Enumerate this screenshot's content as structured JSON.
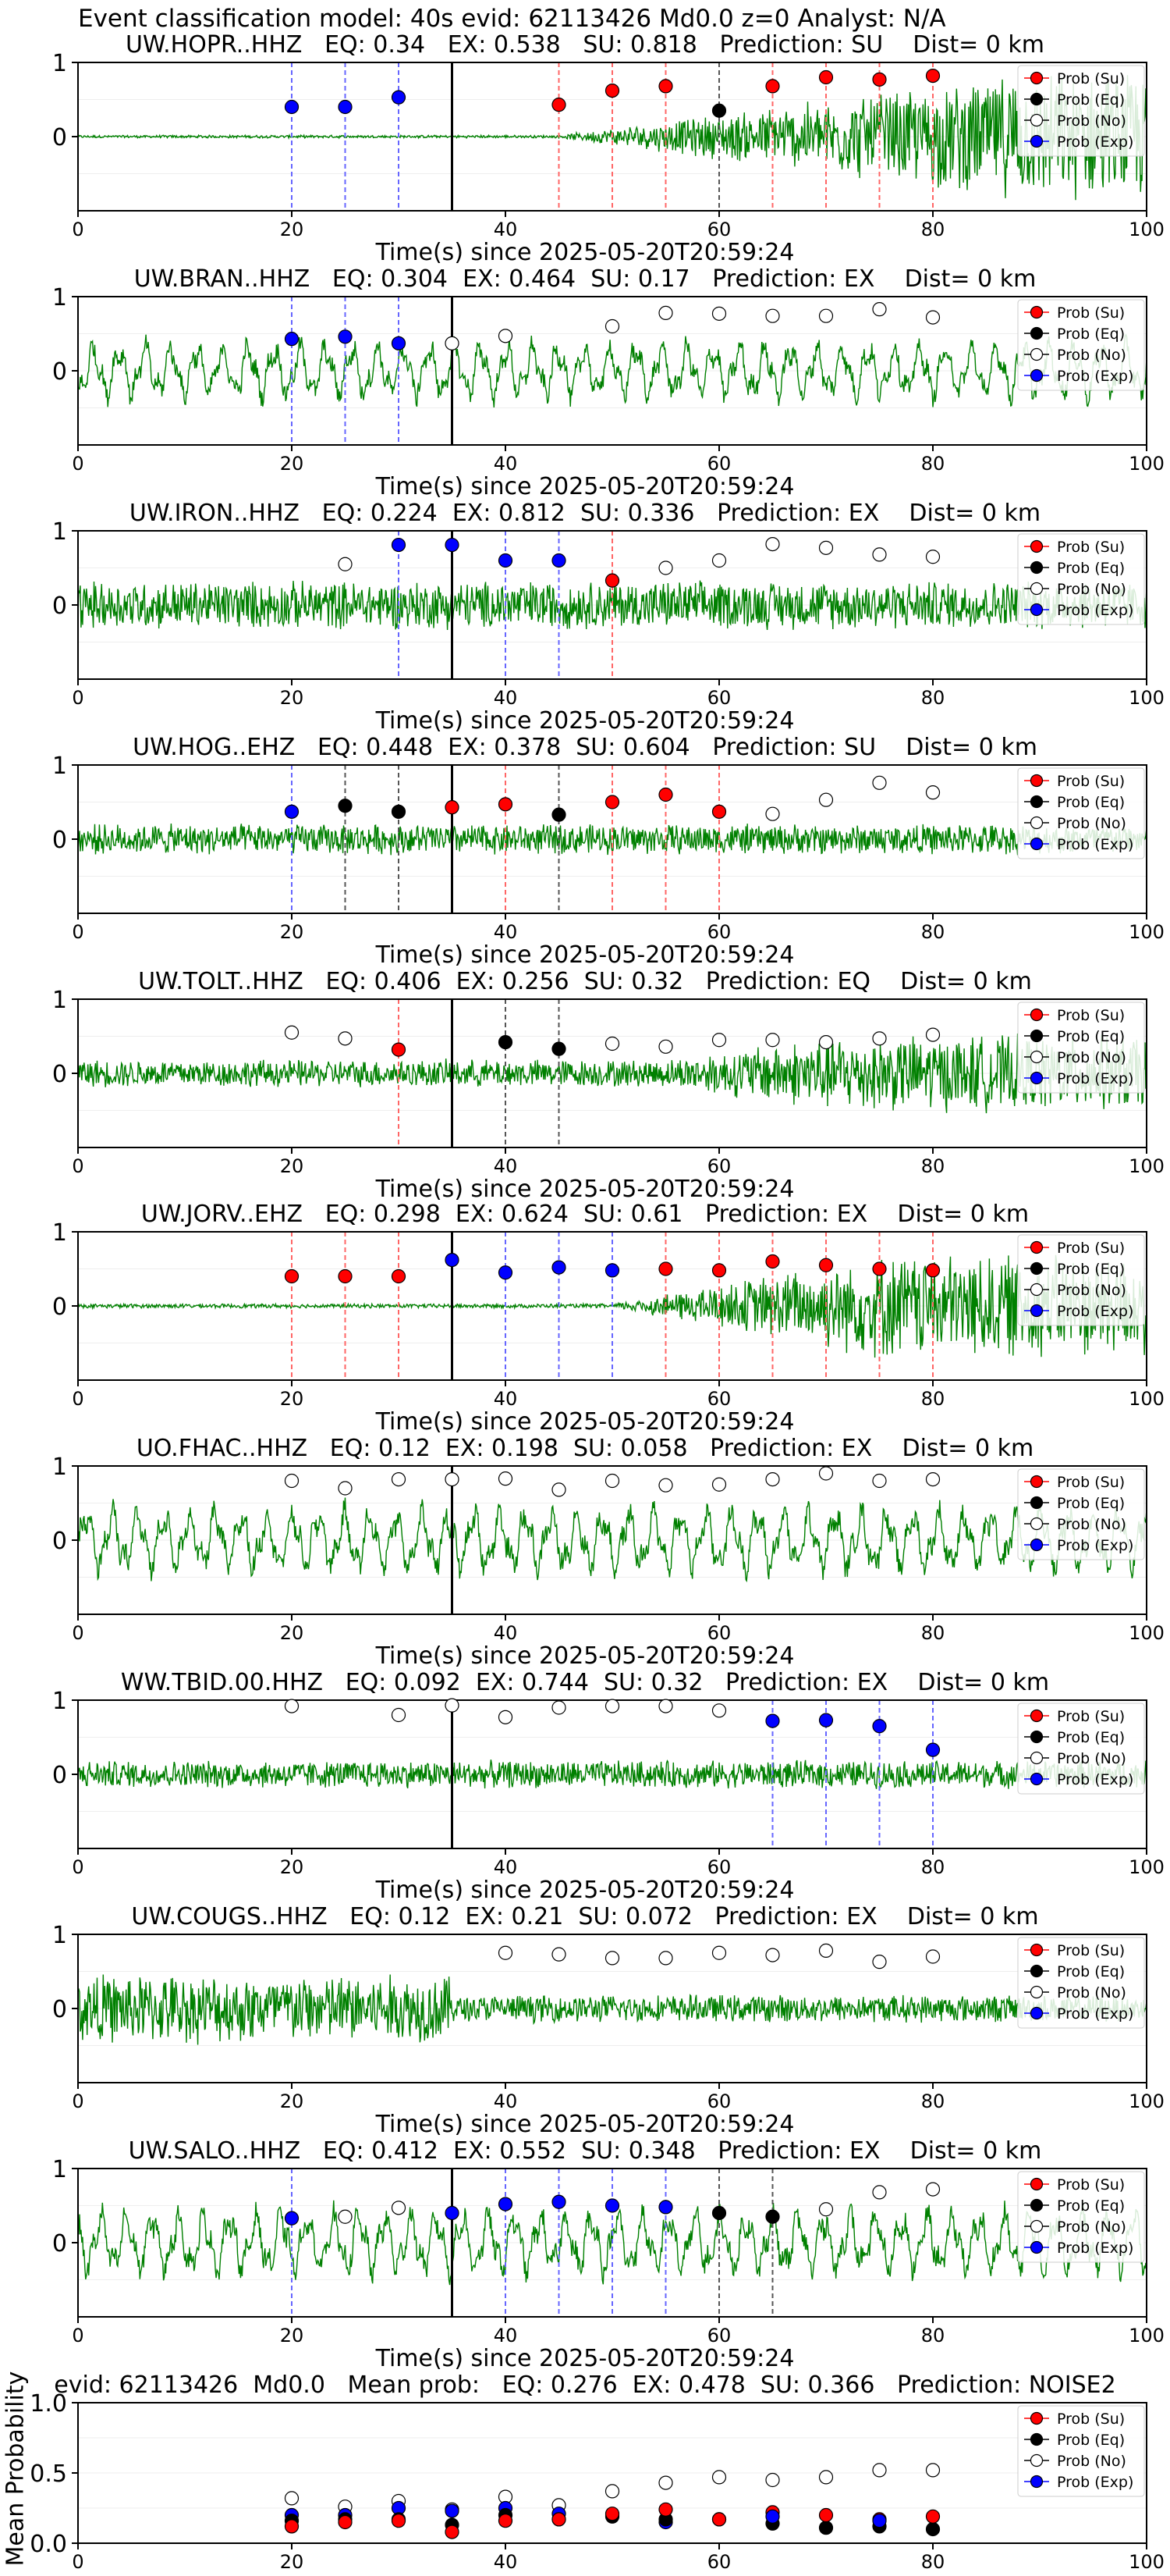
{
  "suptitle": "Event classification model: 40s evid: 62113426 Md0.0 z=0 Analyst: N/A",
  "legend_labels": [
    "Prob (Su)",
    "Prob (Eq)",
    "Prob (No)",
    "Prob (Exp)"
  ],
  "colors": {
    "su": "#ff0000",
    "eq": "#000000",
    "no": "#ffffff",
    "exp": "#0000ff",
    "trace": "#008000",
    "onset": "#000000"
  },
  "x_ticks": [
    0,
    20,
    40,
    60,
    80,
    100
  ],
  "chart_data": [
    {
      "type": "line+scatter",
      "title": "UW.HOPR..HHZ   EQ: 0.34   EX: 0.538   SU: 0.818   Prediction: SU    Dist= 0 km",
      "xlabel": "Time(s) since 2025-05-20T20:59:24",
      "xlim": [
        0,
        100
      ],
      "ylim": [
        -1,
        1
      ],
      "y_ticks": [
        1,
        0
      ],
      "onset": 35,
      "waveform": {
        "amp": 0.02,
        "burst_start": 45,
        "burst_peak": 88,
        "burst_amp": 0.9,
        "style": "noisy"
      },
      "points": [
        {
          "x": 20,
          "y": 0.4,
          "cls": "exp"
        },
        {
          "x": 25,
          "y": 0.4,
          "cls": "exp"
        },
        {
          "x": 30,
          "y": 0.53,
          "cls": "exp"
        },
        {
          "x": 45,
          "y": 0.43,
          "cls": "su"
        },
        {
          "x": 50,
          "y": 0.62,
          "cls": "su"
        },
        {
          "x": 55,
          "y": 0.68,
          "cls": "su"
        },
        {
          "x": 60,
          "y": 0.35,
          "cls": "eq"
        },
        {
          "x": 65,
          "y": 0.68,
          "cls": "su"
        },
        {
          "x": 70,
          "y": 0.8,
          "cls": "su"
        },
        {
          "x": 75,
          "y": 0.77,
          "cls": "su"
        },
        {
          "x": 80,
          "y": 0.82,
          "cls": "su"
        }
      ]
    },
    {
      "type": "line+scatter",
      "title": "UW.BRAN..HHZ   EQ: 0.304  EX: 0.464  SU: 0.17   Prediction: EX    Dist= 0 km",
      "xlabel": "Time(s) since 2025-05-20T20:59:24",
      "xlim": [
        0,
        100
      ],
      "ylim": [
        -1,
        1
      ],
      "y_ticks": [
        1,
        0
      ],
      "onset": 35,
      "waveform": {
        "amp": 0.35,
        "style": "oscillating"
      },
      "points": [
        {
          "x": 20,
          "y": 0.43,
          "cls": "exp"
        },
        {
          "x": 25,
          "y": 0.46,
          "cls": "exp"
        },
        {
          "x": 30,
          "y": 0.37,
          "cls": "exp"
        },
        {
          "x": 35,
          "y": 0.37,
          "cls": "no"
        },
        {
          "x": 40,
          "y": 0.47,
          "cls": "no"
        },
        {
          "x": 50,
          "y": 0.6,
          "cls": "no"
        },
        {
          "x": 55,
          "y": 0.78,
          "cls": "no"
        },
        {
          "x": 60,
          "y": 0.77,
          "cls": "no"
        },
        {
          "x": 65,
          "y": 0.74,
          "cls": "no"
        },
        {
          "x": 70,
          "y": 0.74,
          "cls": "no"
        },
        {
          "x": 75,
          "y": 0.83,
          "cls": "no"
        },
        {
          "x": 80,
          "y": 0.72,
          "cls": "no"
        }
      ]
    },
    {
      "type": "line+scatter",
      "title": "UW.IRON..HHZ   EQ: 0.224  EX: 0.812  SU: 0.336   Prediction: EX    Dist= 0 km",
      "xlabel": "Time(s) since 2025-05-20T20:59:24",
      "xlim": [
        0,
        100
      ],
      "ylim": [
        -1,
        1
      ],
      "y_ticks": [
        1,
        0
      ],
      "onset": 35,
      "waveform": {
        "amp": 0.35,
        "style": "noisy"
      },
      "points": [
        {
          "x": 25,
          "y": 0.55,
          "cls": "no"
        },
        {
          "x": 30,
          "y": 0.81,
          "cls": "exp"
        },
        {
          "x": 35,
          "y": 0.81,
          "cls": "exp"
        },
        {
          "x": 40,
          "y": 0.6,
          "cls": "exp"
        },
        {
          "x": 45,
          "y": 0.6,
          "cls": "exp"
        },
        {
          "x": 50,
          "y": 0.33,
          "cls": "su"
        },
        {
          "x": 55,
          "y": 0.5,
          "cls": "no"
        },
        {
          "x": 60,
          "y": 0.6,
          "cls": "no"
        },
        {
          "x": 65,
          "y": 0.82,
          "cls": "no"
        },
        {
          "x": 70,
          "y": 0.77,
          "cls": "no"
        },
        {
          "x": 75,
          "y": 0.68,
          "cls": "no"
        },
        {
          "x": 80,
          "y": 0.65,
          "cls": "no"
        }
      ]
    },
    {
      "type": "line+scatter",
      "title": "UW.HOG..EHZ   EQ: 0.448  EX: 0.378  SU: 0.604   Prediction: SU    Dist= 0 km",
      "xlabel": "Time(s) since 2025-05-20T20:59:24",
      "xlim": [
        0,
        100
      ],
      "ylim": [
        -1,
        1
      ],
      "y_ticks": [
        1,
        0
      ],
      "onset": 35,
      "waveform": {
        "amp": 0.22,
        "style": "noisy"
      },
      "points": [
        {
          "x": 20,
          "y": 0.37,
          "cls": "exp"
        },
        {
          "x": 25,
          "y": 0.45,
          "cls": "eq"
        },
        {
          "x": 30,
          "y": 0.37,
          "cls": "eq"
        },
        {
          "x": 35,
          "y": 0.43,
          "cls": "su"
        },
        {
          "x": 40,
          "y": 0.47,
          "cls": "su"
        },
        {
          "x": 45,
          "y": 0.33,
          "cls": "eq"
        },
        {
          "x": 50,
          "y": 0.5,
          "cls": "su"
        },
        {
          "x": 55,
          "y": 0.6,
          "cls": "su"
        },
        {
          "x": 60,
          "y": 0.37,
          "cls": "su"
        },
        {
          "x": 65,
          "y": 0.34,
          "cls": "no"
        },
        {
          "x": 70,
          "y": 0.53,
          "cls": "no"
        },
        {
          "x": 75,
          "y": 0.76,
          "cls": "no"
        },
        {
          "x": 80,
          "y": 0.63,
          "cls": "no"
        }
      ]
    },
    {
      "type": "line+scatter",
      "title": "UW.TOLT..HHZ   EQ: 0.406  EX: 0.256  SU: 0.32   Prediction: EQ    Dist= 0 km",
      "xlabel": "Time(s) since 2025-05-20T20:59:24",
      "xlim": [
        0,
        100
      ],
      "ylim": [
        -1,
        1
      ],
      "y_ticks": [
        1,
        0
      ],
      "onset": 35,
      "waveform": {
        "amp": 0.2,
        "burst_start": 55,
        "burst_peak": 70,
        "burst_amp": 0.55,
        "style": "noisy"
      },
      "points": [
        {
          "x": 20,
          "y": 0.55,
          "cls": "no"
        },
        {
          "x": 25,
          "y": 0.47,
          "cls": "no"
        },
        {
          "x": 30,
          "y": 0.32,
          "cls": "su"
        },
        {
          "x": 40,
          "y": 0.42,
          "cls": "eq"
        },
        {
          "x": 45,
          "y": 0.33,
          "cls": "eq"
        },
        {
          "x": 50,
          "y": 0.4,
          "cls": "no"
        },
        {
          "x": 55,
          "y": 0.36,
          "cls": "no"
        },
        {
          "x": 60,
          "y": 0.45,
          "cls": "no"
        },
        {
          "x": 65,
          "y": 0.45,
          "cls": "no"
        },
        {
          "x": 70,
          "y": 0.42,
          "cls": "no"
        },
        {
          "x": 75,
          "y": 0.47,
          "cls": "no"
        },
        {
          "x": 80,
          "y": 0.52,
          "cls": "no"
        }
      ]
    },
    {
      "type": "line+scatter",
      "title": "UW.JORV..EHZ   EQ: 0.298  EX: 0.624  SU: 0.61   Prediction: EX    Dist= 0 km",
      "xlabel": "Time(s) since 2025-05-20T20:59:24",
      "xlim": [
        0,
        100
      ],
      "ylim": [
        -1,
        1
      ],
      "y_ticks": [
        1,
        0
      ],
      "onset": 35,
      "waveform": {
        "amp": 0.03,
        "burst_start": 50,
        "burst_peak": 75,
        "burst_amp": 0.75,
        "style": "noisy"
      },
      "points": [
        {
          "x": 20,
          "y": 0.4,
          "cls": "su"
        },
        {
          "x": 25,
          "y": 0.4,
          "cls": "su"
        },
        {
          "x": 30,
          "y": 0.4,
          "cls": "su"
        },
        {
          "x": 35,
          "y": 0.62,
          "cls": "exp"
        },
        {
          "x": 40,
          "y": 0.45,
          "cls": "exp"
        },
        {
          "x": 45,
          "y": 0.52,
          "cls": "exp"
        },
        {
          "x": 50,
          "y": 0.48,
          "cls": "exp"
        },
        {
          "x": 55,
          "y": 0.5,
          "cls": "su"
        },
        {
          "x": 60,
          "y": 0.48,
          "cls": "su"
        },
        {
          "x": 65,
          "y": 0.6,
          "cls": "su"
        },
        {
          "x": 70,
          "y": 0.55,
          "cls": "su"
        },
        {
          "x": 75,
          "y": 0.5,
          "cls": "su"
        },
        {
          "x": 80,
          "y": 0.48,
          "cls": "su"
        }
      ]
    },
    {
      "type": "line+scatter",
      "title": "UO.FHAC..HHZ   EQ: 0.12  EX: 0.198  SU: 0.058   Prediction: EX    Dist= 0 km",
      "xlabel": "Time(s) since 2025-05-20T20:59:24",
      "xlim": [
        0,
        100
      ],
      "ylim": [
        -1,
        1
      ],
      "y_ticks": [
        1,
        0
      ],
      "onset": 35,
      "waveform": {
        "amp": 0.4,
        "style": "oscillating"
      },
      "points": [
        {
          "x": 20,
          "y": 0.8,
          "cls": "no"
        },
        {
          "x": 25,
          "y": 0.7,
          "cls": "no"
        },
        {
          "x": 30,
          "y": 0.82,
          "cls": "no"
        },
        {
          "x": 35,
          "y": 0.82,
          "cls": "no"
        },
        {
          "x": 40,
          "y": 0.83,
          "cls": "no"
        },
        {
          "x": 45,
          "y": 0.68,
          "cls": "no"
        },
        {
          "x": 50,
          "y": 0.8,
          "cls": "no"
        },
        {
          "x": 55,
          "y": 0.74,
          "cls": "no"
        },
        {
          "x": 60,
          "y": 0.75,
          "cls": "no"
        },
        {
          "x": 65,
          "y": 0.82,
          "cls": "no"
        },
        {
          "x": 70,
          "y": 0.9,
          "cls": "no"
        },
        {
          "x": 75,
          "y": 0.8,
          "cls": "no"
        },
        {
          "x": 80,
          "y": 0.82,
          "cls": "no"
        }
      ]
    },
    {
      "type": "line+scatter",
      "title": "WW.TBID.00.HHZ   EQ: 0.092  EX: 0.744  SU: 0.32   Prediction: EX    Dist= 0 km",
      "xlabel": "Time(s) since 2025-05-20T20:59:24",
      "xlim": [
        0,
        100
      ],
      "ylim": [
        -1,
        1
      ],
      "y_ticks": [
        1,
        0
      ],
      "onset": 35,
      "waveform": {
        "amp": 0.2,
        "style": "noisy"
      },
      "points": [
        {
          "x": 20,
          "y": 0.92,
          "cls": "no"
        },
        {
          "x": 30,
          "y": 0.8,
          "cls": "no"
        },
        {
          "x": 35,
          "y": 0.93,
          "cls": "no"
        },
        {
          "x": 40,
          "y": 0.77,
          "cls": "no"
        },
        {
          "x": 45,
          "y": 0.9,
          "cls": "no"
        },
        {
          "x": 50,
          "y": 0.92,
          "cls": "no"
        },
        {
          "x": 55,
          "y": 0.92,
          "cls": "no"
        },
        {
          "x": 60,
          "y": 0.86,
          "cls": "no"
        },
        {
          "x": 65,
          "y": 0.72,
          "cls": "exp"
        },
        {
          "x": 70,
          "y": 0.73,
          "cls": "exp"
        },
        {
          "x": 75,
          "y": 0.65,
          "cls": "exp"
        },
        {
          "x": 80,
          "y": 0.33,
          "cls": "exp"
        }
      ]
    },
    {
      "type": "line+scatter",
      "title": "UW.COUGS..HHZ   EQ: 0.12  EX: 0.21  SU: 0.072   Prediction: EX    Dist= 0 km",
      "xlabel": "Time(s) since 2025-05-20T20:59:24",
      "xlim": [
        0,
        100
      ],
      "ylim": [
        -1,
        1
      ],
      "y_ticks": [
        1,
        0
      ],
      "onset": null,
      "waveform": {
        "amp": 0.5,
        "decay_to": 0.2,
        "decay_at": 35,
        "style": "noisy"
      },
      "points": [
        {
          "x": 40,
          "y": 0.75,
          "cls": "no"
        },
        {
          "x": 45,
          "y": 0.73,
          "cls": "no"
        },
        {
          "x": 50,
          "y": 0.68,
          "cls": "no"
        },
        {
          "x": 55,
          "y": 0.68,
          "cls": "no"
        },
        {
          "x": 60,
          "y": 0.75,
          "cls": "no"
        },
        {
          "x": 65,
          "y": 0.72,
          "cls": "no"
        },
        {
          "x": 70,
          "y": 0.78,
          "cls": "no"
        },
        {
          "x": 75,
          "y": 0.63,
          "cls": "no"
        },
        {
          "x": 80,
          "y": 0.7,
          "cls": "no"
        }
      ]
    },
    {
      "type": "line+scatter",
      "title": "UW.SALO..HHZ   EQ: 0.412  EX: 0.552  SU: 0.348   Prediction: EX    Dist= 0 km",
      "xlabel": "Time(s) since 2025-05-20T20:59:24",
      "xlim": [
        0,
        100
      ],
      "ylim": [
        -1,
        1
      ],
      "y_ticks": [
        1,
        0
      ],
      "onset": 35,
      "waveform": {
        "amp": 0.4,
        "style": "oscillating"
      },
      "points": [
        {
          "x": 20,
          "y": 0.33,
          "cls": "exp"
        },
        {
          "x": 25,
          "y": 0.35,
          "cls": "no"
        },
        {
          "x": 30,
          "y": 0.47,
          "cls": "no"
        },
        {
          "x": 35,
          "y": 0.4,
          "cls": "exp"
        },
        {
          "x": 40,
          "y": 0.52,
          "cls": "exp"
        },
        {
          "x": 45,
          "y": 0.55,
          "cls": "exp"
        },
        {
          "x": 50,
          "y": 0.5,
          "cls": "exp"
        },
        {
          "x": 55,
          "y": 0.48,
          "cls": "exp"
        },
        {
          "x": 60,
          "y": 0.4,
          "cls": "eq"
        },
        {
          "x": 65,
          "y": 0.35,
          "cls": "eq"
        },
        {
          "x": 70,
          "y": 0.45,
          "cls": "no"
        },
        {
          "x": 75,
          "y": 0.68,
          "cls": "no"
        },
        {
          "x": 80,
          "y": 0.72,
          "cls": "no"
        }
      ]
    },
    {
      "type": "scatter",
      "title": "evid: 62113426  Md0.0   Mean prob:   EQ: 0.276  EX: 0.478  SU: 0.366   Prediction: NOISE2",
      "xlabel": "",
      "ylabel": "Mean Probability",
      "xlim": [
        0,
        100
      ],
      "ylim": [
        0,
        1
      ],
      "y_ticks": [
        1.0,
        0.5,
        0.0
      ],
      "points": [
        {
          "x": 20,
          "y": 0.32,
          "cls": "no"
        },
        {
          "x": 20,
          "y": 0.2,
          "cls": "exp"
        },
        {
          "x": 20,
          "y": 0.16,
          "cls": "eq"
        },
        {
          "x": 20,
          "y": 0.12,
          "cls": "su"
        },
        {
          "x": 25,
          "y": 0.26,
          "cls": "no"
        },
        {
          "x": 25,
          "y": 0.2,
          "cls": "exp"
        },
        {
          "x": 25,
          "y": 0.17,
          "cls": "eq"
        },
        {
          "x": 25,
          "y": 0.15,
          "cls": "su"
        },
        {
          "x": 30,
          "y": 0.3,
          "cls": "no"
        },
        {
          "x": 30,
          "y": 0.25,
          "cls": "exp"
        },
        {
          "x": 30,
          "y": 0.17,
          "cls": "eq"
        },
        {
          "x": 30,
          "y": 0.16,
          "cls": "su"
        },
        {
          "x": 35,
          "y": 0.24,
          "cls": "no"
        },
        {
          "x": 35,
          "y": 0.23,
          "cls": "exp"
        },
        {
          "x": 35,
          "y": 0.13,
          "cls": "eq"
        },
        {
          "x": 35,
          "y": 0.08,
          "cls": "su"
        },
        {
          "x": 40,
          "y": 0.33,
          "cls": "no"
        },
        {
          "x": 40,
          "y": 0.25,
          "cls": "exp"
        },
        {
          "x": 40,
          "y": 0.2,
          "cls": "eq"
        },
        {
          "x": 40,
          "y": 0.16,
          "cls": "su"
        },
        {
          "x": 45,
          "y": 0.27,
          "cls": "no"
        },
        {
          "x": 45,
          "y": 0.21,
          "cls": "exp"
        },
        {
          "x": 45,
          "y": 0.17,
          "cls": "eq"
        },
        {
          "x": 45,
          "y": 0.17,
          "cls": "su"
        },
        {
          "x": 50,
          "y": 0.37,
          "cls": "no"
        },
        {
          "x": 50,
          "y": 0.2,
          "cls": "exp"
        },
        {
          "x": 50,
          "y": 0.19,
          "cls": "eq"
        },
        {
          "x": 50,
          "y": 0.21,
          "cls": "su"
        },
        {
          "x": 55,
          "y": 0.43,
          "cls": "no"
        },
        {
          "x": 55,
          "y": 0.15,
          "cls": "exp"
        },
        {
          "x": 55,
          "y": 0.17,
          "cls": "eq"
        },
        {
          "x": 55,
          "y": 0.24,
          "cls": "su"
        },
        {
          "x": 60,
          "y": 0.47,
          "cls": "no"
        },
        {
          "x": 60,
          "y": 0.17,
          "cls": "eq"
        },
        {
          "x": 60,
          "y": 0.17,
          "cls": "su"
        },
        {
          "x": 65,
          "y": 0.45,
          "cls": "no"
        },
        {
          "x": 65,
          "y": 0.14,
          "cls": "eq"
        },
        {
          "x": 65,
          "y": 0.22,
          "cls": "su"
        },
        {
          "x": 65,
          "y": 0.19,
          "cls": "exp"
        },
        {
          "x": 70,
          "y": 0.47,
          "cls": "no"
        },
        {
          "x": 70,
          "y": 0.11,
          "cls": "eq"
        },
        {
          "x": 70,
          "y": 0.2,
          "cls": "su"
        },
        {
          "x": 75,
          "y": 0.52,
          "cls": "no"
        },
        {
          "x": 75,
          "y": 0.12,
          "cls": "eq"
        },
        {
          "x": 75,
          "y": 0.17,
          "cls": "su"
        },
        {
          "x": 75,
          "y": 0.16,
          "cls": "exp"
        },
        {
          "x": 80,
          "y": 0.52,
          "cls": "no"
        },
        {
          "x": 80,
          "y": 0.1,
          "cls": "eq"
        },
        {
          "x": 80,
          "y": 0.19,
          "cls": "su"
        }
      ]
    }
  ]
}
